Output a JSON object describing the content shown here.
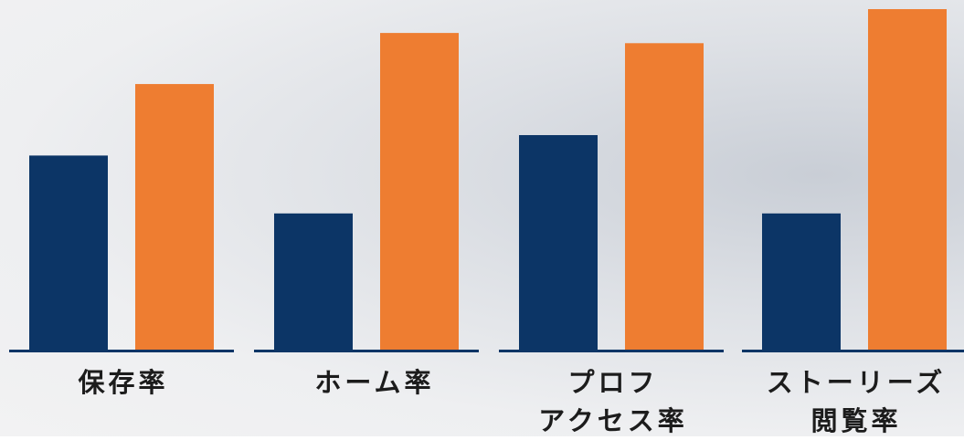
{
  "chart_data": {
    "type": "bar",
    "categories": [
      "保存率",
      "ホーム率",
      "プロフ\nアクセス率",
      "ストーリーズ\n閲覧率"
    ],
    "series": [
      {
        "color": "#0c3566",
        "values": [
          57,
          40,
          63,
          40
        ]
      },
      {
        "color": "#ee7d31",
        "values": [
          78,
          93,
          90,
          100
        ]
      }
    ]
  }
}
